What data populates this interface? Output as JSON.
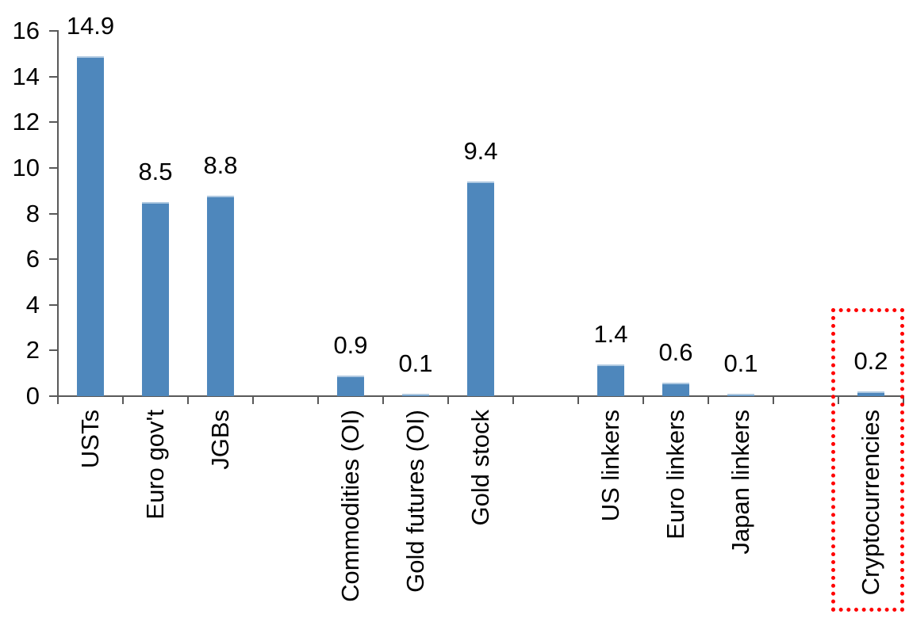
{
  "chart_data": {
    "type": "bar",
    "title": "",
    "xlabel": "",
    "ylabel": "",
    "ylim": [
      0,
      16
    ],
    "y_ticks": [
      0,
      2,
      4,
      6,
      8,
      10,
      12,
      14,
      16
    ],
    "grid": "off",
    "legend": "none",
    "categories": [
      "USTs",
      "Euro gov't",
      "JGBs",
      "Commodities (OI)",
      "Gold futures (OI)",
      "Gold stock",
      "US linkers",
      "Euro linkers",
      "Japan linkers",
      "Cryptocurrencies"
    ],
    "values": [
      14.9,
      8.5,
      8.8,
      0.9,
      0.1,
      9.4,
      1.4,
      0.6,
      0.1,
      0.2
    ],
    "data_labels": [
      "14.9",
      "8.5",
      "8.8",
      "0.9",
      "0.1",
      "9.4",
      "1.4",
      "0.6",
      "0.1",
      "0.2"
    ],
    "groups": [
      {
        "categories": [
          "USTs",
          "Euro gov't",
          "JGBs"
        ],
        "values": [
          14.9,
          8.5,
          8.8
        ]
      },
      {
        "categories": [
          "Commodities (OI)",
          "Gold futures (OI)",
          "Gold stock"
        ],
        "values": [
          0.9,
          0.1,
          9.4
        ]
      },
      {
        "categories": [
          "US linkers",
          "Euro linkers",
          "Japan linkers"
        ],
        "values": [
          1.4,
          0.6,
          0.1
        ]
      },
      {
        "categories": [
          "Cryptocurrencies"
        ],
        "values": [
          0.2
        ]
      }
    ],
    "highlight": {
      "category": "Cryptocurrencies",
      "style": "red-dotted-box",
      "color": "#FF0000"
    },
    "colors": {
      "bar": "#4E87BC",
      "bar_top_edge": "#AFC9E1",
      "axis": "#595959",
      "text": "#000000",
      "background": "#FFFFFF"
    }
  }
}
